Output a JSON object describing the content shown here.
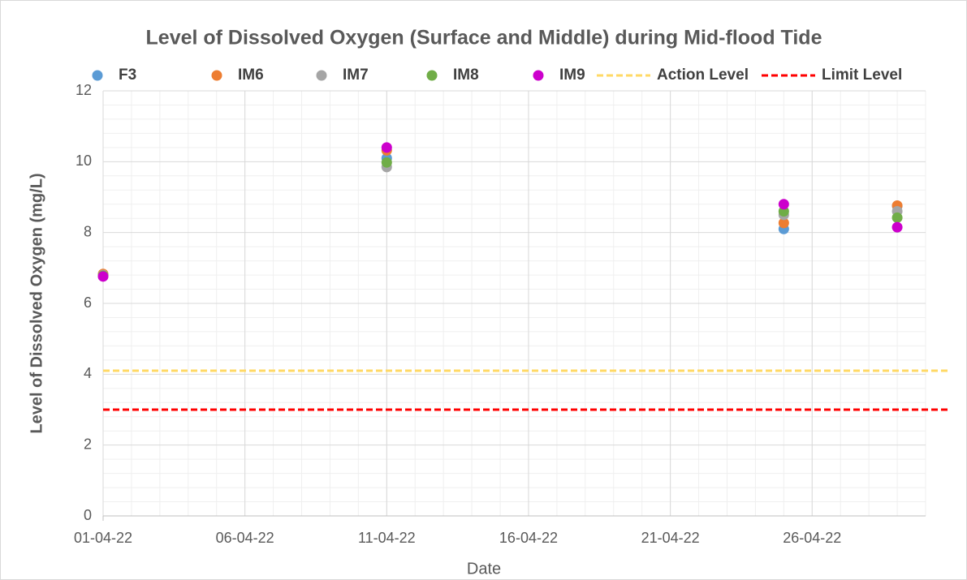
{
  "chart_data": {
    "type": "scatter",
    "title": "Level of Dissolved Oxygen (Surface and Middle) during Mid-flood Tide",
    "x_label": "Date",
    "y_label": "Level of Dissolved Oxygen (mg/L)",
    "x": [
      "01-04-22",
      "11-04-22",
      "25-04-22",
      "29-04-22"
    ],
    "series": [
      {
        "name": "F3",
        "color": "#5b9bd5",
        "values": [
          6.8,
          10.1,
          8.1,
          8.75
        ]
      },
      {
        "name": "IM6",
        "color": "#ed7d31",
        "values": [
          6.83,
          10.32,
          8.27,
          8.76
        ]
      },
      {
        "name": "IM7",
        "color": "#a5a5a5",
        "values": [
          6.8,
          9.85,
          8.5,
          8.6
        ]
      },
      {
        "name": "IM8",
        "color": "#70ad47",
        "values": [
          6.78,
          9.98,
          8.6,
          8.42
        ]
      },
      {
        "name": "IM9",
        "color": "#cc00cc",
        "values": [
          6.76,
          10.4,
          8.8,
          8.15
        ]
      }
    ],
    "reference_lines": [
      {
        "name": "Action Level",
        "value": 4.1,
        "color": "#ffd966"
      },
      {
        "name": "Limit Level",
        "value": 3,
        "color": "#ff0000"
      }
    ],
    "xlim": [
      "01-04-22",
      "30-04-22"
    ],
    "xticks": [
      "01-04-22",
      "06-04-22",
      "11-04-22",
      "16-04-22",
      "21-04-22",
      "26-04-22"
    ],
    "ylim": [
      0,
      12
    ],
    "yticks": [
      0,
      2,
      4,
      6,
      8,
      10,
      12
    ],
    "grid": true,
    "minor_grid": true,
    "legend": "top"
  }
}
